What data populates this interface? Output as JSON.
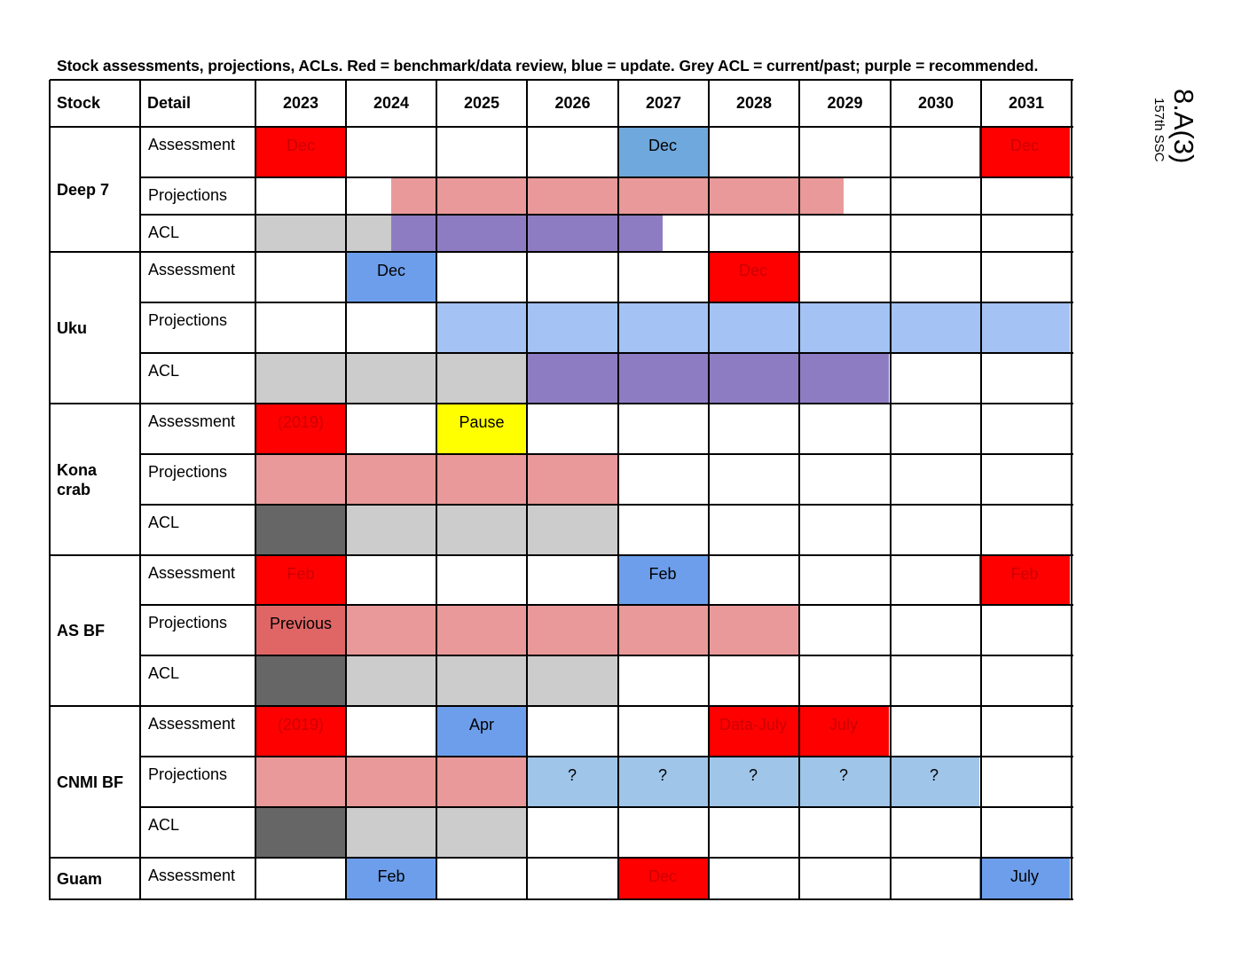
{
  "caption": "Stock assessments, projections, ACLs. Red = benchmark/data review, blue = update. Grey ACL = current/past; purple = recommended.",
  "side_label": {
    "main": "8.A(3)",
    "sub": "157th SSC"
  },
  "colors": {
    "red": "#ff0000",
    "pink": "#e99999",
    "darkpink": "#e06666",
    "grey": "#cccccc",
    "darkgrey": "#666666",
    "purple": "#8e7cc3",
    "blue": "#6d9eeb",
    "steelblue": "#6fa8dc",
    "lightblue": "#a4c2f4",
    "paleblue": "#9fc5e8",
    "yellow": "#ffff00",
    "redtext": "#cc0000"
  },
  "table": {
    "headers": {
      "stock": "Stock",
      "detail": "Detail"
    },
    "years": [
      "2023",
      "2024",
      "2025",
      "2026",
      "2027",
      "2028",
      "2029",
      "2030",
      "2031"
    ],
    "stocks": [
      {
        "name": "Deep 7",
        "rows": [
          {
            "detail": "Assessment",
            "bars": [
              {
                "start": 0,
                "end": 1,
                "color": "red",
                "label": "Dec",
                "text": "redtext"
              },
              {
                "start": 4,
                "end": 5,
                "color": "steelblue",
                "label": "Dec"
              },
              {
                "start": 8,
                "end": 9,
                "color": "red",
                "label": "Dec",
                "text": "redtext"
              }
            ]
          },
          {
            "detail": "Projections",
            "bars": [
              {
                "start": 1.5,
                "end": 6.5,
                "color": "pink",
                "label": ""
              }
            ]
          },
          {
            "detail": "ACL",
            "bars": [
              {
                "start": 0,
                "end": 1.5,
                "color": "grey",
                "label": ""
              },
              {
                "start": 1.5,
                "end": 4.5,
                "color": "purple",
                "label": ""
              }
            ]
          }
        ]
      },
      {
        "name": "Uku",
        "rows": [
          {
            "detail": "Assessment",
            "bars": [
              {
                "start": 1,
                "end": 2,
                "color": "blue",
                "label": "Dec"
              },
              {
                "start": 5,
                "end": 6,
                "color": "red",
                "label": "Dec",
                "text": "redtext"
              }
            ]
          },
          {
            "detail": "Projections",
            "bars": [
              {
                "start": 2,
                "end": 9,
                "color": "lightblue",
                "label": ""
              }
            ]
          },
          {
            "detail": "ACL",
            "bars": [
              {
                "start": 0,
                "end": 3,
                "color": "grey",
                "label": ""
              },
              {
                "start": 3,
                "end": 7,
                "color": "purple",
                "label": ""
              }
            ]
          }
        ]
      },
      {
        "name": "Kona crab",
        "rows": [
          {
            "detail": "Assessment",
            "bars": [
              {
                "start": 0,
                "end": 1,
                "color": "red",
                "label": "(2019)",
                "text": "redtext"
              },
              {
                "start": 2,
                "end": 3,
                "color": "yellow",
                "label": "Pause"
              }
            ]
          },
          {
            "detail": "Projections",
            "bars": [
              {
                "start": 0,
                "end": 4,
                "color": "pink",
                "label": ""
              }
            ]
          },
          {
            "detail": "ACL",
            "bars": [
              {
                "start": 0,
                "end": 1,
                "color": "darkgrey",
                "label": ""
              },
              {
                "start": 1,
                "end": 4,
                "color": "grey",
                "label": ""
              }
            ]
          }
        ]
      },
      {
        "name": "AS BF",
        "rows": [
          {
            "detail": "Assessment",
            "bars": [
              {
                "start": 0,
                "end": 1,
                "color": "red",
                "label": "Feb",
                "text": "redtext"
              },
              {
                "start": 4,
                "end": 5,
                "color": "blue",
                "label": "Feb"
              },
              {
                "start": 8,
                "end": 9,
                "color": "red",
                "label": "Feb",
                "text": "redtext"
              }
            ]
          },
          {
            "detail": "Projections",
            "bars": [
              {
                "start": 0,
                "end": 1,
                "color": "darkpink",
                "label": "Previous"
              },
              {
                "start": 1,
                "end": 6,
                "color": "pink",
                "label": ""
              }
            ]
          },
          {
            "detail": "ACL",
            "bars": [
              {
                "start": 0,
                "end": 1,
                "color": "darkgrey",
                "label": ""
              },
              {
                "start": 1,
                "end": 4,
                "color": "grey",
                "label": ""
              }
            ]
          }
        ]
      },
      {
        "name": "CNMI BF",
        "rows": [
          {
            "detail": "Assessment",
            "bars": [
              {
                "start": 0,
                "end": 1,
                "color": "red",
                "label": "(2019)",
                "text": "redtext"
              },
              {
                "start": 2,
                "end": 3,
                "color": "blue",
                "label": "Apr"
              },
              {
                "start": 5,
                "end": 6,
                "color": "red",
                "label": "Data-July",
                "text": "redtext"
              },
              {
                "start": 6,
                "end": 7,
                "color": "red",
                "label": "July",
                "text": "redtext"
              }
            ]
          },
          {
            "detail": "Projections",
            "bars": [
              {
                "start": 0,
                "end": 3,
                "color": "pink",
                "label": ""
              },
              {
                "start": 3,
                "end": 4,
                "color": "paleblue",
                "label": "?"
              },
              {
                "start": 4,
                "end": 5,
                "color": "paleblue",
                "label": "?"
              },
              {
                "start": 5,
                "end": 6,
                "color": "paleblue",
                "label": "?"
              },
              {
                "start": 6,
                "end": 7,
                "color": "paleblue",
                "label": "?"
              },
              {
                "start": 7,
                "end": 8,
                "color": "paleblue",
                "label": "?"
              }
            ]
          },
          {
            "detail": "ACL",
            "bars": [
              {
                "start": 0,
                "end": 1,
                "color": "darkgrey",
                "label": ""
              },
              {
                "start": 1,
                "end": 3,
                "color": "grey",
                "label": ""
              }
            ]
          }
        ]
      },
      {
        "name": "Guam",
        "rows": [
          {
            "detail": "Assessment",
            "bars": [
              {
                "start": 1,
                "end": 2,
                "color": "blue",
                "label": "Feb"
              },
              {
                "start": 4,
                "end": 5,
                "color": "red",
                "label": "Dec",
                "text": "redtext"
              },
              {
                "start": 8,
                "end": 9,
                "color": "blue",
                "label": "July"
              }
            ]
          }
        ]
      }
    ]
  }
}
